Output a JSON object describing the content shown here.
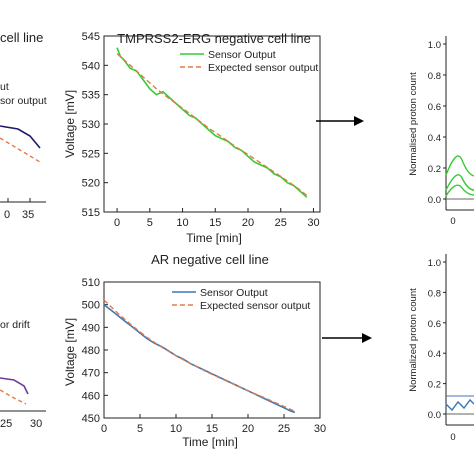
{
  "left_fragments": {
    "top_title": "cell line",
    "top_legend_1": "ut",
    "top_legend_2": "sor output",
    "top_ticks": [
      "0",
      "35"
    ],
    "bottom_legend": "or drift",
    "bottom_ticks": [
      "25",
      "30"
    ],
    "colors": {
      "sensor": "#1c1c6b",
      "expected": "#e07b4a"
    }
  },
  "chart_data": [
    {
      "type": "line",
      "title": "TMPRSS2-ERG negative cell line",
      "xlabel": "Time [min]",
      "ylabel": "Voltage [mV]",
      "xlim": [
        -2,
        31
      ],
      "ylim": [
        515,
        545
      ],
      "xticks": [
        0,
        5,
        10,
        15,
        20,
        25,
        30
      ],
      "yticks": [
        515,
        520,
        525,
        530,
        535,
        540,
        545
      ],
      "legend": "top-right",
      "series": [
        {
          "name": "Sensor Output",
          "color": "#33cc33",
          "dash": "",
          "x": [
            0,
            0.5,
            1,
            2,
            3,
            4,
            5,
            6,
            7,
            8,
            9,
            10,
            11,
            12,
            13,
            14,
            15,
            16,
            17,
            18,
            19,
            20,
            21,
            22,
            23,
            24,
            25,
            26,
            27,
            28,
            29
          ],
          "y": [
            543,
            541.5,
            541,
            539.5,
            539,
            537.5,
            536,
            535,
            535.5,
            534.5,
            533.5,
            532.5,
            531.5,
            531,
            530,
            529,
            528,
            527.5,
            527,
            526,
            525.5,
            524.5,
            523.5,
            523,
            522.5,
            521.5,
            521,
            520,
            519.5,
            518.5,
            517.5
          ]
        },
        {
          "name": "Expected sensor output",
          "color": "#e07b4a",
          "dash": "5,3",
          "x": [
            0,
            2,
            4,
            6,
            8,
            10,
            12,
            14,
            16,
            18,
            20,
            22,
            24,
            26,
            28,
            29
          ],
          "y": [
            542,
            540,
            538,
            536,
            534.3,
            532.7,
            531,
            529.3,
            527.8,
            526.2,
            524.8,
            523.3,
            521.8,
            520.3,
            518.7,
            517.8
          ]
        }
      ]
    },
    {
      "type": "line",
      "title": "AR negative cell line",
      "xlabel": "Time [min]",
      "ylabel": "Voltage [mV]",
      "xlim": [
        0,
        30
      ],
      "ylim": [
        450,
        510
      ],
      "xticks": [
        0,
        5,
        10,
        15,
        20,
        25,
        30
      ],
      "yticks": [
        450,
        460,
        470,
        480,
        490,
        500,
        510
      ],
      "legend": "top-right",
      "series": [
        {
          "name": "Sensor Output",
          "color": "#3c78b4",
          "dash": "",
          "x": [
            0,
            1,
            2,
            3,
            4,
            5,
            6,
            7,
            8,
            9,
            10,
            11,
            12,
            13,
            14,
            15,
            16,
            17,
            18,
            19,
            20,
            21,
            22,
            23,
            24,
            25,
            26,
            26.5
          ],
          "y": [
            500,
            497.5,
            495,
            492.5,
            490,
            487.5,
            485,
            483,
            481.5,
            479.5,
            477.5,
            476,
            474,
            472.5,
            471,
            469.5,
            468,
            466.5,
            465,
            463.5,
            462,
            460.5,
            459,
            457.5,
            456,
            454.5,
            453,
            452.5
          ]
        },
        {
          "name": "Expected sensor output",
          "color": "#e07b4a",
          "dash": "5,3",
          "x": [
            0,
            2,
            4,
            6,
            8,
            10,
            12,
            14,
            16,
            18,
            20,
            22,
            24,
            26.5
          ],
          "y": [
            502,
            496,
            490.5,
            485.5,
            481.3,
            477.5,
            474,
            470.8,
            467.8,
            464.9,
            462,
            459.3,
            456.5,
            453
          ]
        }
      ]
    },
    {
      "type": "line",
      "title": "",
      "xlabel": "",
      "ylabel": "Normalised proton count",
      "ylim": [
        0,
        1
      ],
      "yticks": [
        "0.0",
        "0.2",
        "0.4",
        "0.6",
        "0.8",
        "1.0"
      ],
      "xticks": [
        "0"
      ]
    },
    {
      "type": "line",
      "title": "",
      "xlabel": "",
      "ylabel": "Normalized proton count",
      "ylim": [
        0,
        1
      ],
      "yticks": [
        "0.0",
        "0.2",
        "0.4",
        "0.6",
        "0.8",
        "1.0"
      ],
      "xticks": [
        "0"
      ]
    }
  ]
}
